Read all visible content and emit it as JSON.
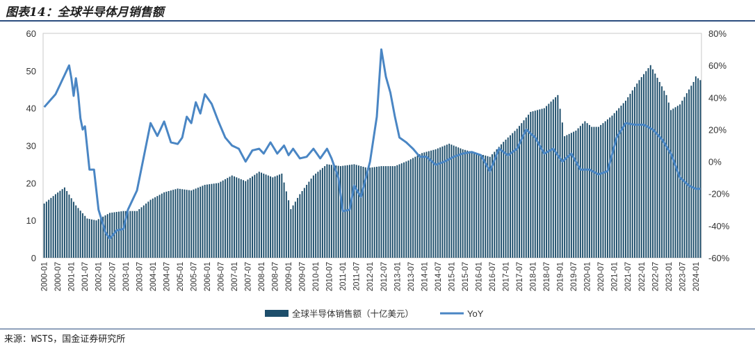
{
  "figure_title": "图表14：全球半导体月销售额",
  "source_note": "来源：WSTS，国金证券研究所",
  "chart_data": {
    "type": "bar+line",
    "x_start": "2000-01",
    "x_end": "2024-03",
    "x_ticks": [
      "2000-01",
      "2000-07",
      "2001-01",
      "2001-07",
      "2002-01",
      "2002-07",
      "2003-01",
      "2003-07",
      "2004-01",
      "2004-07",
      "2005-01",
      "2005-07",
      "2006-01",
      "2006-07",
      "2007-01",
      "2007-07",
      "2008-01",
      "2008-07",
      "2009-01",
      "2009-07",
      "2010-01",
      "2010-07",
      "2011-01",
      "2011-07",
      "2012-01",
      "2012-07",
      "2013-01",
      "2013-07",
      "2014-01",
      "2014-07",
      "2015-01",
      "2015-07",
      "2016-01",
      "2016-07",
      "2017-01",
      "2017-07",
      "2018-01",
      "2018-07",
      "2019-01",
      "2019-07",
      "2020-01",
      "2020-07",
      "2021-01",
      "2021-07",
      "2022-01",
      "2022-07",
      "2023-01",
      "2023-07",
      "2024-01"
    ],
    "left_axis": {
      "min": 0,
      "max": 60,
      "step": 10,
      "ticks": [
        "0",
        "10",
        "20",
        "30",
        "40",
        "50",
        "60"
      ]
    },
    "right_axis": {
      "min": -60,
      "max": 80,
      "step": 20,
      "ticks": [
        "-60%",
        "-40%",
        "-20%",
        "0%",
        "20%",
        "40%",
        "60%",
        "80%"
      ]
    },
    "grid": false,
    "legend_position": "bottom-center",
    "series": [
      {
        "name": "全球半导体销售额（十亿美元）",
        "kind": "bar",
        "axis": "left",
        "color": "#1d4e6b",
        "keypoints": [
          [
            "2000-01",
            14.5
          ],
          [
            "2000-06",
            17
          ],
          [
            "2000-10",
            18.8
          ],
          [
            "2001-03",
            14
          ],
          [
            "2001-08",
            10.5
          ],
          [
            "2001-12",
            10
          ],
          [
            "2002-06",
            12
          ],
          [
            "2002-12",
            12.5
          ],
          [
            "2003-06",
            12.5
          ],
          [
            "2003-12",
            15.5
          ],
          [
            "2004-06",
            17.5
          ],
          [
            "2004-12",
            18.5
          ],
          [
            "2005-06",
            18
          ],
          [
            "2005-12",
            19.5
          ],
          [
            "2006-06",
            20
          ],
          [
            "2006-12",
            22
          ],
          [
            "2007-06",
            20.5
          ],
          [
            "2007-12",
            23
          ],
          [
            "2008-06",
            21.5
          ],
          [
            "2008-10",
            22.5
          ],
          [
            "2009-02",
            13
          ],
          [
            "2009-06",
            17
          ],
          [
            "2009-12",
            22
          ],
          [
            "2010-06",
            25
          ],
          [
            "2010-12",
            24.5
          ],
          [
            "2011-06",
            25
          ],
          [
            "2011-12",
            24
          ],
          [
            "2012-06",
            24.5
          ],
          [
            "2012-12",
            24.5
          ],
          [
            "2013-06",
            26
          ],
          [
            "2013-12",
            28
          ],
          [
            "2014-06",
            29
          ],
          [
            "2014-12",
            30.5
          ],
          [
            "2015-06",
            29
          ],
          [
            "2015-12",
            28
          ],
          [
            "2016-06",
            27
          ],
          [
            "2016-12",
            31
          ],
          [
            "2017-06",
            34.5
          ],
          [
            "2017-12",
            39
          ],
          [
            "2018-06",
            40
          ],
          [
            "2018-12",
            43.5
          ],
          [
            "2019-03",
            32.5
          ],
          [
            "2019-08",
            34
          ],
          [
            "2019-12",
            36.5
          ],
          [
            "2020-03",
            35
          ],
          [
            "2020-06",
            35
          ],
          [
            "2020-12",
            38
          ],
          [
            "2021-06",
            42
          ],
          [
            "2021-12",
            47.5
          ],
          [
            "2022-05",
            51.5
          ],
          [
            "2022-09",
            47
          ],
          [
            "2022-12",
            43.5
          ],
          [
            "2023-02",
            39.5
          ],
          [
            "2023-06",
            41
          ],
          [
            "2023-12",
            47
          ],
          [
            "2024-01",
            48.5
          ],
          [
            "2024-03",
            47.5
          ]
        ]
      },
      {
        "name": "YoY",
        "kind": "line",
        "axis": "right",
        "color": "#4a86c4",
        "keypoints": [
          [
            "2000-01",
            34
          ],
          [
            "2000-06",
            42
          ],
          [
            "2000-12",
            60
          ],
          [
            "2001-01",
            52
          ],
          [
            "2001-02",
            41
          ],
          [
            "2001-03",
            52
          ],
          [
            "2001-04",
            42
          ],
          [
            "2001-05",
            27
          ],
          [
            "2001-06",
            20
          ],
          [
            "2001-07",
            22
          ],
          [
            "2001-09",
            -5
          ],
          [
            "2001-11",
            -5
          ],
          [
            "2002-01",
            -30
          ],
          [
            "2002-04",
            -44
          ],
          [
            "2002-06",
            -48
          ],
          [
            "2002-09",
            -43
          ],
          [
            "2002-12",
            -42
          ],
          [
            "2003-02",
            -30
          ],
          [
            "2003-06",
            -18
          ],
          [
            "2003-09",
            3
          ],
          [
            "2003-12",
            24
          ],
          [
            "2004-03",
            16
          ],
          [
            "2004-06",
            25
          ],
          [
            "2004-09",
            12
          ],
          [
            "2004-12",
            11
          ],
          [
            "2005-02",
            15
          ],
          [
            "2005-04",
            28
          ],
          [
            "2005-06",
            24
          ],
          [
            "2005-08",
            37
          ],
          [
            "2005-10",
            30
          ],
          [
            "2005-12",
            42
          ],
          [
            "2006-03",
            36
          ],
          [
            "2006-06",
            25
          ],
          [
            "2006-09",
            15
          ],
          [
            "2006-12",
            10
          ],
          [
            "2007-03",
            8
          ],
          [
            "2007-06",
            0
          ],
          [
            "2007-09",
            7
          ],
          [
            "2007-12",
            8
          ],
          [
            "2008-02",
            5
          ],
          [
            "2008-05",
            12
          ],
          [
            "2008-08",
            5
          ],
          [
            "2008-11",
            10
          ],
          [
            "2009-01",
            4
          ],
          [
            "2009-03",
            8
          ],
          [
            "2009-06",
            2
          ],
          [
            "2009-09",
            3
          ],
          [
            "2009-12",
            8
          ],
          [
            "2010-03",
            2
          ],
          [
            "2010-06",
            8
          ],
          [
            "2010-08",
            2
          ],
          [
            "2010-11",
            -10
          ],
          [
            "2011-01",
            -31
          ],
          [
            "2011-04",
            -30
          ],
          [
            "2011-06",
            -15
          ],
          [
            "2011-09",
            -22
          ],
          [
            "2012-01",
            0
          ],
          [
            "2012-04",
            28
          ],
          [
            "2012-06",
            70
          ],
          [
            "2012-08",
            53
          ],
          [
            "2012-10",
            43
          ],
          [
            "2012-12",
            28
          ],
          [
            "2013-02",
            15
          ],
          [
            "2013-05",
            12
          ],
          [
            "2013-08",
            8
          ],
          [
            "2013-11",
            3
          ],
          [
            "2014-02",
            3
          ],
          [
            "2014-06",
            -2
          ],
          [
            "2014-10",
            0
          ],
          [
            "2015-02",
            3
          ],
          [
            "2015-06",
            5
          ],
          [
            "2015-10",
            6
          ],
          [
            "2016-02",
            4
          ],
          [
            "2016-06",
            -6
          ],
          [
            "2016-10",
            8
          ],
          [
            "2017-02",
            4
          ],
          [
            "2017-06",
            8
          ],
          [
            "2017-10",
            20
          ],
          [
            "2018-02",
            15
          ],
          [
            "2018-06",
            5
          ],
          [
            "2018-10",
            8
          ],
          [
            "2019-02",
            0
          ],
          [
            "2019-06",
            5
          ],
          [
            "2019-10",
            -5
          ],
          [
            "2020-02",
            -5
          ],
          [
            "2020-06",
            -8
          ],
          [
            "2020-10",
            -6
          ],
          [
            "2021-02",
            15
          ],
          [
            "2021-06",
            24
          ],
          [
            "2021-10",
            23
          ],
          [
            "2022-02",
            23
          ],
          [
            "2022-06",
            20
          ],
          [
            "2022-10",
            14
          ],
          [
            "2023-02",
            5
          ],
          [
            "2023-06",
            -10
          ],
          [
            "2023-10",
            -15
          ],
          [
            "2024-01",
            -17
          ]
        ]
      }
    ]
  }
}
